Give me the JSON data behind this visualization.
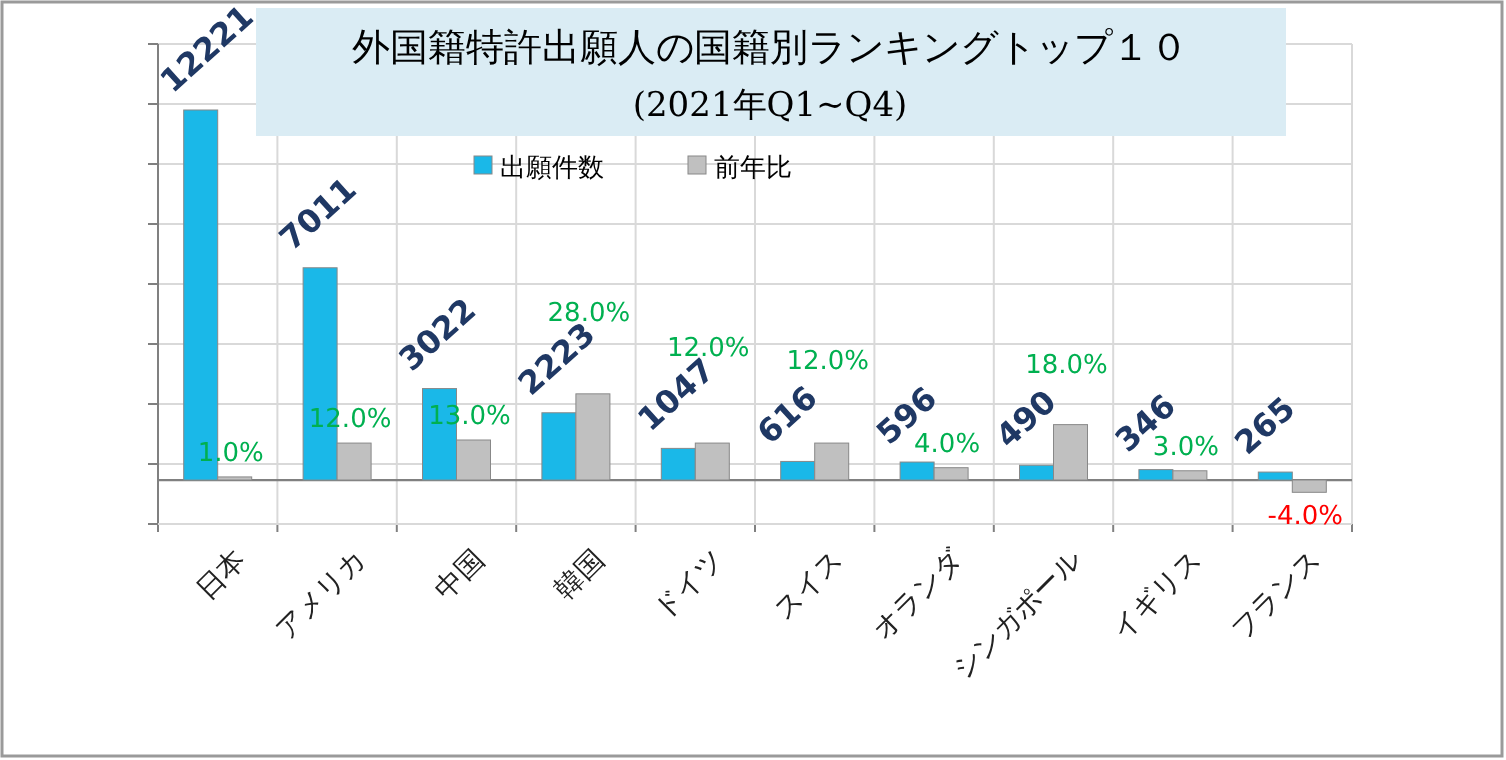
{
  "chart_data": {
    "type": "bar",
    "title": "外国籍特許出願人の国籍別ランキングトップ１０",
    "subtitle": "(2021年Q1~Q4)",
    "categories": [
      "日本",
      "アメリカ",
      "中国",
      "韓国",
      "ドイツ",
      "スイス",
      "オランダ",
      "シンガポール",
      "イギリス",
      "フランス"
    ],
    "series": [
      {
        "name": "出願件数",
        "color": "#1ab8e8",
        "values": [
          12221,
          7011,
          3022,
          2223,
          1047,
          616,
          596,
          490,
          346,
          265
        ]
      },
      {
        "name": "前年比",
        "color": "#c0c0c0",
        "axis": "y2",
        "values": [
          1.0,
          12.0,
          13.0,
          28.0,
          12.0,
          12.0,
          4.0,
          18.0,
          3.0,
          -4.0
        ],
        "value_labels": [
          "1.0%",
          "12.0%",
          "13.0%",
          "28.0%",
          "12.0%",
          "12.0%",
          "4.0%",
          "18.0%",
          "3.0%",
          "-4.0%"
        ]
      }
    ],
    "data_labels": true,
    "ylim": [
      -1450,
      14400
    ],
    "yticks": [
      {
        "value": -1450,
        "label": null
      },
      {
        "value": 531,
        "label": null
      },
      {
        "value": 2513,
        "label": null
      },
      {
        "value": 4494,
        "label": null
      },
      {
        "value": 6475,
        "label": null
      },
      {
        "value": 8456,
        "label": null
      },
      {
        "value": 10438,
        "label": null
      },
      {
        "value": 12419,
        "label": null
      },
      {
        "value": 14400,
        "label": null
      }
    ],
    "y2lim": [
      -14.3,
      141.7
    ],
    "tick_labels": "x",
    "grid": true,
    "legend": "top"
  }
}
